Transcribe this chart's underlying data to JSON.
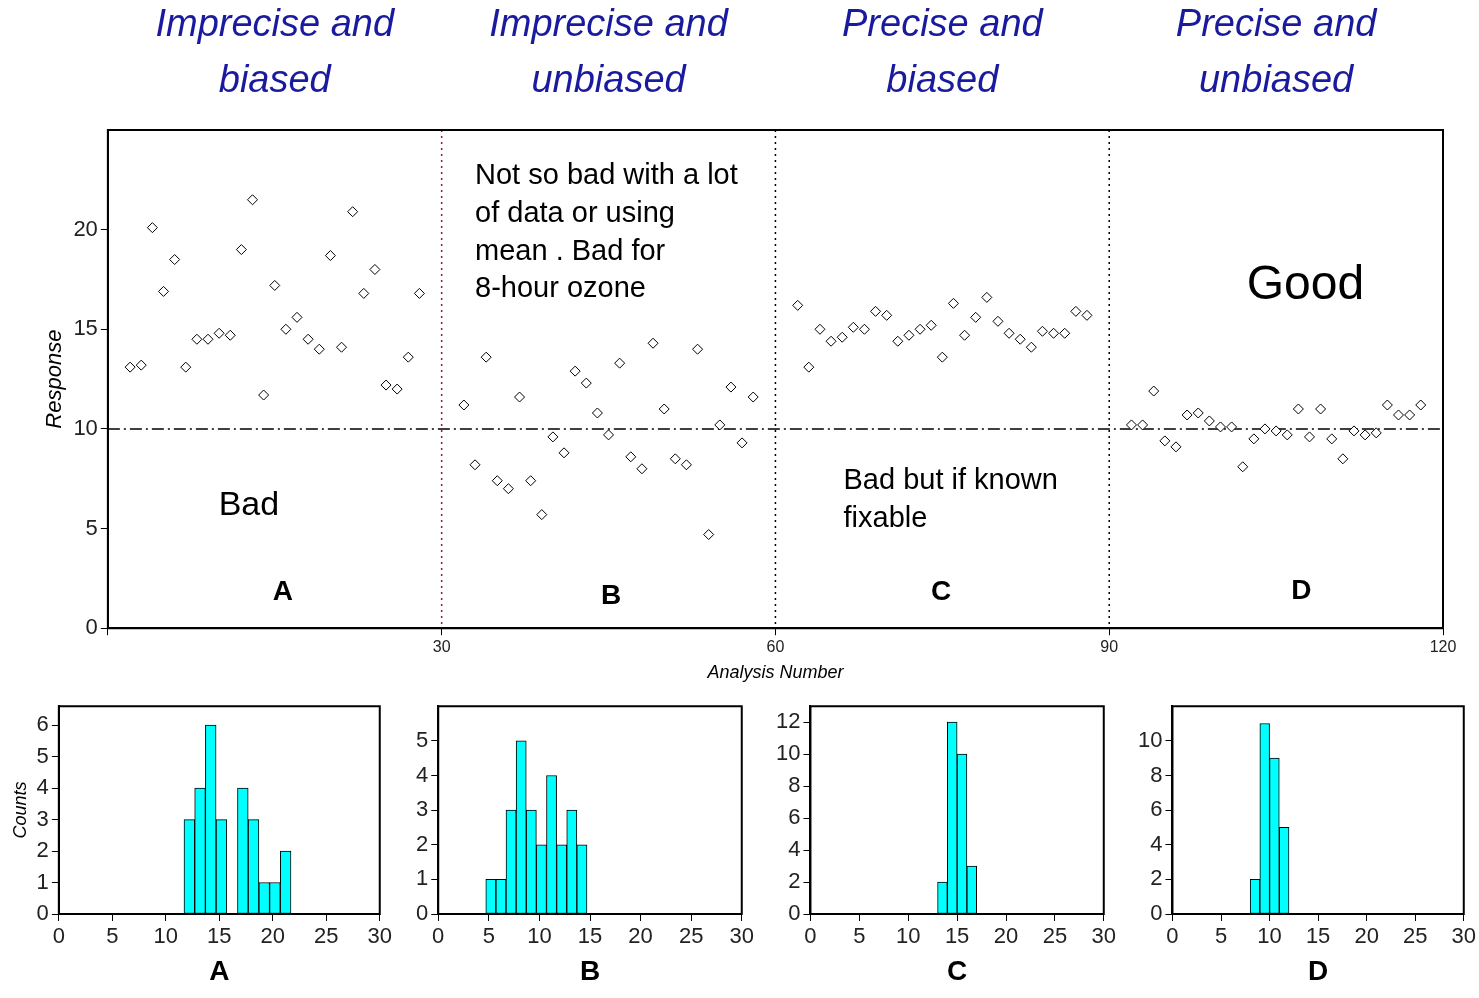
{
  "chart_data": [
    {
      "type": "scatter",
      "xlabel": "Analysis Number",
      "ylabel": "Response",
      "color": "#000000",
      "marker": "diamond",
      "x": [
        2,
        3,
        4,
        5,
        6,
        7,
        8,
        9,
        10,
        11,
        12,
        13,
        14,
        15,
        16,
        17,
        18,
        19,
        20,
        21,
        22,
        23,
        24,
        25,
        26,
        27,
        28,
        32,
        33,
        34,
        35,
        36,
        37,
        38,
        39,
        40,
        41,
        42,
        43,
        44,
        45,
        46,
        47,
        48,
        49,
        50,
        51,
        52,
        53,
        54,
        55,
        56,
        57,
        58,
        62,
        63,
        64,
        65,
        66,
        67,
        68,
        69,
        70,
        71,
        72,
        73,
        74,
        75,
        76,
        77,
        78,
        79,
        80,
        81,
        82,
        83,
        84,
        85,
        86,
        87,
        88,
        92,
        93,
        94,
        95,
        96,
        97,
        98,
        99,
        100,
        101,
        102,
        103,
        104,
        105,
        106,
        107,
        108,
        109,
        110,
        111,
        112,
        113,
        114,
        115,
        116,
        117,
        118
      ],
      "values": [
        13.1,
        13.2,
        20.1,
        16.9,
        18.5,
        13.1,
        14.5,
        14.5,
        14.8,
        14.7,
        19.0,
        21.5,
        11.7,
        17.2,
        15.0,
        15.6,
        14.5,
        14.0,
        18.7,
        14.1,
        20.9,
        16.8,
        18.0,
        12.2,
        12.0,
        13.6,
        16.8,
        11.2,
        8.2,
        13.6,
        7.4,
        7.0,
        11.6,
        7.4,
        5.7,
        9.6,
        8.8,
        12.9,
        12.3,
        10.8,
        9.7,
        13.3,
        8.6,
        8.0,
        14.3,
        11.0,
        8.5,
        8.2,
        14.0,
        4.7,
        10.2,
        12.1,
        9.3,
        11.6,
        16.2,
        13.1,
        15.0,
        14.4,
        14.6,
        15.1,
        15.0,
        15.9,
        15.7,
        14.4,
        14.7,
        15.0,
        15.2,
        13.6,
        16.3,
        14.7,
        15.6,
        16.6,
        15.4,
        14.8,
        14.5,
        14.1,
        14.9,
        14.8,
        14.8,
        15.9,
        15.7,
        10.2,
        10.2,
        11.9,
        9.4,
        9.1,
        10.7,
        10.8,
        10.4,
        10.1,
        10.1,
        8.1,
        9.5,
        10.0,
        9.9,
        9.7,
        11.0,
        9.6,
        11.0,
        9.5,
        8.5,
        9.9,
        9.7,
        9.8,
        11.2,
        10.7,
        10.7,
        11.2
      ],
      "xlim": [
        0,
        120
      ],
      "xticks": [
        {
          "value": 0,
          "label": null
        },
        30,
        60,
        90,
        120
      ],
      "ylim": [
        0,
        25
      ],
      "yticks": [
        0,
        5,
        10,
        15,
        20
      ],
      "ref_lines": [
        {
          "axis": "x",
          "value": 30,
          "color": "#a0104a",
          "line_style": "dotted"
        },
        {
          "axis": "x",
          "value": 60,
          "color": "#000000",
          "line_style": "dotted"
        },
        {
          "axis": "x",
          "value": 90,
          "color": "#000000",
          "line_style": "dotted"
        },
        {
          "axis": "y",
          "value": 10,
          "color": "#000000",
          "line_style": "dashed"
        }
      ],
      "annotations": [
        "Imprecise and biased",
        "Imprecise and unbiased",
        "Precise and biased",
        "Precise and unbiased",
        "Bad",
        "Not so bad with a lot of data or using mean . Bad for 8-hour ozone",
        "Bad but if known fixable",
        "Good",
        "A",
        "B",
        "C",
        "D"
      ]
    },
    {
      "type": "histogram",
      "xlabel": "A",
      "ylabel": "Counts",
      "color": "#00ffff",
      "bins": [
        11.7,
        12.7,
        13.7,
        14.7,
        15.7,
        16.7,
        17.7,
        18.7,
        19.7,
        20.7,
        21.7
      ],
      "values": [
        3,
        4,
        6,
        3,
        0,
        4,
        3,
        1,
        1,
        2
      ],
      "xlim": [
        0,
        30
      ],
      "xticks": [
        0,
        5,
        10,
        15,
        20,
        25,
        30
      ],
      "ylim": [
        0,
        6.6
      ],
      "yticks": [
        0,
        1,
        2,
        3,
        4,
        5,
        6
      ]
    },
    {
      "type": "histogram",
      "xlabel": "B",
      "color": "#00ffff",
      "bins": [
        4.7,
        5.7,
        6.7,
        7.7,
        8.7,
        9.7,
        10.7,
        11.7,
        12.7,
        13.7,
        14.7
      ],
      "values": [
        1,
        1,
        3,
        5,
        3,
        2,
        4,
        2,
        3,
        2
      ],
      "xlim": [
        0,
        30
      ],
      "xticks": [
        0,
        5,
        10,
        15,
        20,
        25,
        30
      ],
      "ylim": [
        0,
        6
      ],
      "yticks": [
        0,
        1,
        2,
        3,
        4,
        5
      ]
    },
    {
      "type": "histogram",
      "xlabel": "C",
      "color": "#00ffff",
      "bins": [
        13,
        14,
        15,
        16,
        17
      ],
      "values": [
        2,
        12,
        10,
        3
      ],
      "xlim": [
        0,
        30
      ],
      "xticks": [
        0,
        5,
        10,
        15,
        20,
        25,
        30
      ],
      "ylim": [
        0,
        13
      ],
      "yticks": [
        0,
        2,
        4,
        6,
        8,
        10,
        12
      ]
    },
    {
      "type": "histogram",
      "xlabel": "D",
      "color": "#00ffff",
      "bins": [
        8,
        9,
        10,
        11,
        12
      ],
      "values": [
        2,
        11,
        9,
        5
      ],
      "xlim": [
        0,
        30
      ],
      "xticks": [
        0,
        5,
        10,
        15,
        20,
        25,
        30
      ],
      "ylim": [
        0,
        12
      ],
      "yticks": [
        0,
        2,
        4,
        6,
        8,
        10
      ]
    }
  ]
}
